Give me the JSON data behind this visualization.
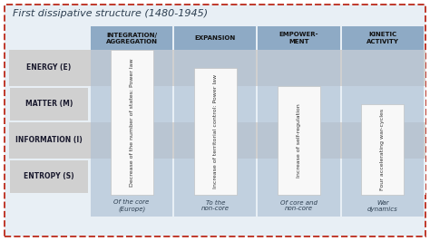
{
  "title": "First dissipative structure (1480-1945)",
  "title_fontsize": 8,
  "outer_bg": "#ffffff",
  "inner_bg": "#e8eff5",
  "dashed_border_color": "#c0392b",
  "row_labels": [
    "ENERGY (E)",
    "MATTER (M)",
    "INFORMATION (I)",
    "ENTROPY (S)"
  ],
  "row_label_fontsize": 5.5,
  "col_headers": [
    "INTEGRATION/\nAGGREGATION",
    "EXPANSION",
    "EMPOWER-\nMENT",
    "KINETIC\nACTIVITY"
  ],
  "col_header_fontsize": 5.0,
  "col_header_bg": "#8eaac5",
  "col_bar_bg": "#adc0d4",
  "col_inner_box_bg": "#f8f8f8",
  "col_footers": [
    "Of the core\n(Europe)",
    "To the\nnon-core",
    "Of core and\nnon-core",
    "War\ndynamics"
  ],
  "col_footer_fontsize": 5.0,
  "col_texts": [
    "Decrease of the number of states: Power law",
    "Increase of territorial control: Power law",
    "Increase of self-regulation",
    "Four accelerating war-cycles"
  ],
  "col_text_fontsize": 4.5,
  "col_text_bold": [
    "Power law",
    "Power law",
    "",
    ""
  ],
  "row_stripe_colors": [
    "#d0d0d0",
    "#e8eff5",
    "#d0d0d0",
    "#e8eff5"
  ],
  "row_label_bg": "#d0d0d0"
}
